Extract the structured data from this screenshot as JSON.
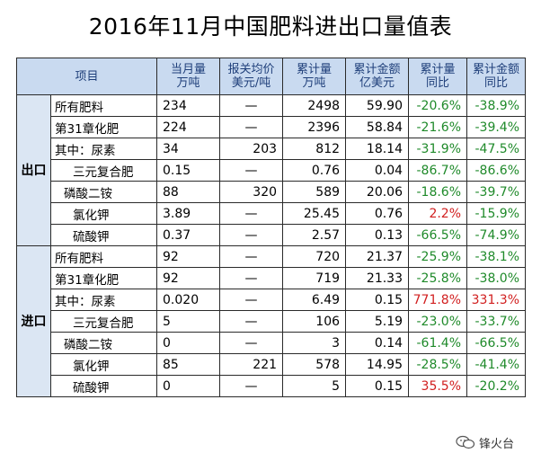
{
  "title": "2016年11月中国肥料进出口量值表",
  "headers": {
    "item": "项目",
    "monthly_qty": [
      "当月量",
      "万吨"
    ],
    "price": [
      "报关均价",
      "美元/吨"
    ],
    "cum_qty": [
      "累计量",
      "万吨"
    ],
    "cum_amount": [
      "累计金额",
      "亿美元"
    ],
    "cum_qty_yoy": [
      "累计量",
      "同比"
    ],
    "cum_amount_yoy": [
      "累计金额",
      "同比"
    ]
  },
  "sections": {
    "export": "出口",
    "import": "进口"
  },
  "export_rows": [
    {
      "name": "所有肥料",
      "monthly": "234",
      "price": "—",
      "cum_qty": "2498",
      "cum_amount": "59.90",
      "qty_yoy": "-20.6%",
      "amount_yoy": "-38.9%"
    },
    {
      "name": "第31章化肥",
      "monthly": "224",
      "price": "—",
      "cum_qty": "2396",
      "cum_amount": "58.84",
      "qty_yoy": "-21.6%",
      "amount_yoy": "-39.4%"
    },
    {
      "name": "其中：尿素",
      "monthly": "34",
      "price": "203",
      "cum_qty": "812",
      "cum_amount": "18.14",
      "qty_yoy": "-31.9%",
      "amount_yoy": "-47.5%"
    },
    {
      "name": "三元复合肥",
      "monthly": "0.15",
      "price": "—",
      "cum_qty": "0.76",
      "cum_amount": "0.04",
      "qty_yoy": "-86.7%",
      "amount_yoy": "-86.6%"
    },
    {
      "name": "磷酸二铵",
      "monthly": "88",
      "price": "320",
      "cum_qty": "589",
      "cum_amount": "20.06",
      "qty_yoy": "-18.6%",
      "amount_yoy": "-39.7%"
    },
    {
      "name": "氯化钾",
      "monthly": "3.89",
      "price": "—",
      "cum_qty": "25.45",
      "cum_amount": "0.76",
      "qty_yoy": "2.2%",
      "amount_yoy": "-15.9%"
    },
    {
      "name": "硫酸钾",
      "monthly": "0.37",
      "price": "—",
      "cum_qty": "2.57",
      "cum_amount": "0.13",
      "qty_yoy": "-66.5%",
      "amount_yoy": "-74.9%"
    }
  ],
  "import_rows": [
    {
      "name": "所有肥料",
      "monthly": "92",
      "price": "—",
      "cum_qty": "720",
      "cum_amount": "21.37",
      "qty_yoy": "-25.9%",
      "amount_yoy": "-38.1%"
    },
    {
      "name": "第31章化肥",
      "monthly": "92",
      "price": "—",
      "cum_qty": "719",
      "cum_amount": "21.33",
      "qty_yoy": "-25.8%",
      "amount_yoy": "-38.0%"
    },
    {
      "name": "其中：尿素",
      "monthly": "0.020",
      "price": "—",
      "cum_qty": "6.49",
      "cum_amount": "0.15",
      "qty_yoy": "771.8%",
      "amount_yoy": "331.3%"
    },
    {
      "name": "三元复合肥",
      "monthly": "5",
      "price": "—",
      "cum_qty": "106",
      "cum_amount": "5.19",
      "qty_yoy": "-23.0%",
      "amount_yoy": "-33.7%"
    },
    {
      "name": "磷酸二铵",
      "monthly": "0",
      "price": "—",
      "cum_qty": "3",
      "cum_amount": "0.14",
      "qty_yoy": "-61.4%",
      "amount_yoy": "-66.5%"
    },
    {
      "name": "氯化钾",
      "monthly": "85",
      "price": "221",
      "cum_qty": "578",
      "cum_amount": "14.95",
      "qty_yoy": "-28.5%",
      "amount_yoy": "-41.4%"
    },
    {
      "name": "硫酸钾",
      "monthly": "0",
      "price": "—",
      "cum_qty": "5",
      "cum_amount": "0.15",
      "qty_yoy": "35.5%",
      "amount_yoy": "-20.2%"
    }
  ],
  "watermark": "锋火台",
  "colors": {
    "positive": "#d11f1f",
    "negative": "#1f8a2a",
    "header_bg": "#c9daf0",
    "header_text": "#1f3f7a",
    "section_bg": "#dbe6f3"
  }
}
